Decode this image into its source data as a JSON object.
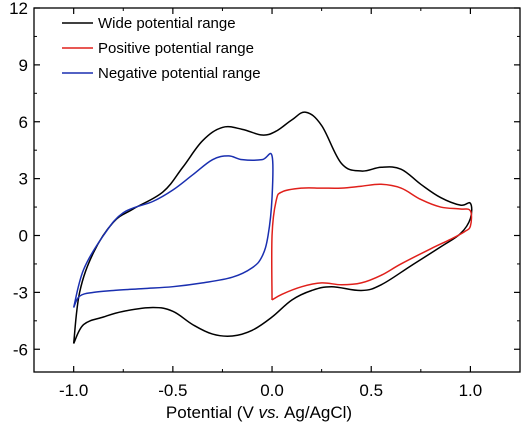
{
  "chart_data": {
    "type": "line",
    "title": "",
    "xlabel_parts": [
      "Potential (V ",
      "vs.",
      " Ag/AgCl)"
    ],
    "ylabel": "",
    "xlim": [
      -1.2,
      1.25
    ],
    "ylim": [
      -7.2,
      12
    ],
    "x_ticks": [
      -1.0,
      -0.5,
      0.0,
      0.5,
      1.0
    ],
    "x_tick_labels": [
      "-1.0",
      "-0.5",
      "0.0",
      "0.5",
      "1.0"
    ],
    "y_ticks": [
      -6,
      -3,
      0,
      3,
      6,
      9,
      12
    ],
    "y_tick_labels": [
      "-6",
      "-3",
      "0",
      "3",
      "6",
      "9",
      "12"
    ],
    "grid": false,
    "legend_position": "top-left",
    "series": [
      {
        "name": "Wide potential range",
        "color": "#000000",
        "points": [
          [
            -1.0,
            -5.7
          ],
          [
            -0.95,
            -4.7
          ],
          [
            -0.85,
            -4.3
          ],
          [
            -0.75,
            -4.0
          ],
          [
            -0.6,
            -3.8
          ],
          [
            -0.5,
            -4.0
          ],
          [
            -0.4,
            -4.7
          ],
          [
            -0.3,
            -5.2
          ],
          [
            -0.2,
            -5.3
          ],
          [
            -0.1,
            -5.0
          ],
          [
            0.0,
            -4.3
          ],
          [
            0.1,
            -3.4
          ],
          [
            0.2,
            -2.9
          ],
          [
            0.3,
            -2.7
          ],
          [
            0.45,
            -2.9
          ],
          [
            0.55,
            -2.6
          ],
          [
            0.7,
            -1.6
          ],
          [
            0.85,
            -0.6
          ],
          [
            0.95,
            0.1
          ],
          [
            1.0,
            0.9
          ],
          [
            1.0,
            1.7
          ],
          [
            0.95,
            1.6
          ],
          [
            0.85,
            2.0
          ],
          [
            0.75,
            2.7
          ],
          [
            0.65,
            3.5
          ],
          [
            0.55,
            3.6
          ],
          [
            0.45,
            3.4
          ],
          [
            0.35,
            3.8
          ],
          [
            0.25,
            5.8
          ],
          [
            0.17,
            6.5
          ],
          [
            0.1,
            6.1
          ],
          [
            0.02,
            5.5
          ],
          [
            -0.05,
            5.3
          ],
          [
            -0.15,
            5.6
          ],
          [
            -0.25,
            5.7
          ],
          [
            -0.35,
            5.0
          ],
          [
            -0.45,
            3.6
          ],
          [
            -0.55,
            2.3
          ],
          [
            -0.7,
            1.4
          ],
          [
            -0.8,
            0.7
          ],
          [
            -0.9,
            -0.9
          ],
          [
            -0.97,
            -3.0
          ],
          [
            -1.0,
            -5.7
          ]
        ]
      },
      {
        "name": "Positive potential range",
        "color": "#e0201b",
        "points": [
          [
            0.0,
            -3.4
          ],
          [
            0.05,
            -3.1
          ],
          [
            0.15,
            -2.7
          ],
          [
            0.25,
            -2.5
          ],
          [
            0.35,
            -2.6
          ],
          [
            0.45,
            -2.5
          ],
          [
            0.55,
            -2.1
          ],
          [
            0.65,
            -1.5
          ],
          [
            0.8,
            -0.7
          ],
          [
            0.9,
            -0.2
          ],
          [
            0.97,
            0.2
          ],
          [
            1.0,
            0.5
          ],
          [
            1.0,
            1.3
          ],
          [
            0.95,
            1.4
          ],
          [
            0.85,
            1.5
          ],
          [
            0.75,
            1.9
          ],
          [
            0.65,
            2.5
          ],
          [
            0.55,
            2.7
          ],
          [
            0.45,
            2.6
          ],
          [
            0.35,
            2.5
          ],
          [
            0.25,
            2.5
          ],
          [
            0.15,
            2.5
          ],
          [
            0.05,
            2.3
          ],
          [
            0.02,
            1.8
          ],
          [
            0.0,
            0.0
          ],
          [
            0.0,
            -3.4
          ]
        ]
      },
      {
        "name": "Negative potential range",
        "color": "#1a2fb0",
        "points": [
          [
            -1.0,
            -3.8
          ],
          [
            -0.97,
            -3.2
          ],
          [
            -0.9,
            -3.0
          ],
          [
            -0.8,
            -2.9
          ],
          [
            -0.65,
            -2.8
          ],
          [
            -0.5,
            -2.7
          ],
          [
            -0.35,
            -2.5
          ],
          [
            -0.2,
            -2.2
          ],
          [
            -0.1,
            -1.7
          ],
          [
            -0.05,
            -1.1
          ],
          [
            -0.02,
            0.0
          ],
          [
            0.0,
            2.0
          ],
          [
            0.0,
            4.2
          ],
          [
            -0.05,
            4.0
          ],
          [
            -0.15,
            4.0
          ],
          [
            -0.22,
            4.2
          ],
          [
            -0.3,
            4.0
          ],
          [
            -0.4,
            3.2
          ],
          [
            -0.5,
            2.4
          ],
          [
            -0.6,
            1.8
          ],
          [
            -0.75,
            1.2
          ],
          [
            -0.85,
            0.0
          ],
          [
            -0.95,
            -1.8
          ],
          [
            -1.0,
            -3.8
          ]
        ]
      }
    ]
  }
}
